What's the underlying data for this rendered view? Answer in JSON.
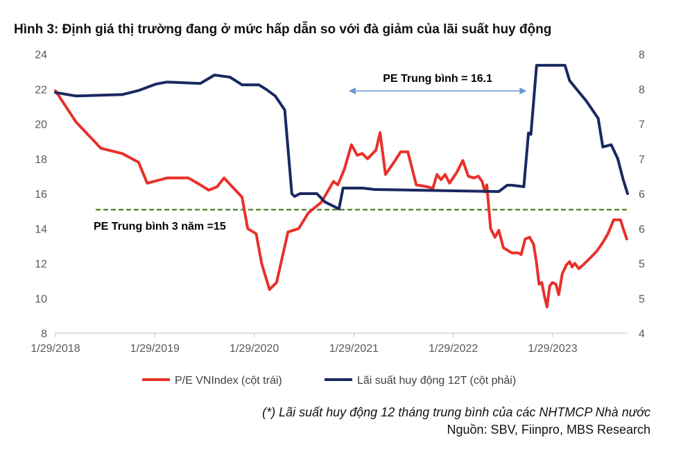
{
  "title": "Hình 3: Định giá thị trường đang ở mức hấp dẫn so với đà giảm của lãi suất huy động",
  "chart_data": {
    "type": "line",
    "x_ticks": [
      "1/29/2018",
      "1/29/2019",
      "1/29/2020",
      "1/29/2021",
      "1/29/2022",
      "1/29/2023"
    ],
    "x_range": [
      "2018-01-29",
      "2023-10-31"
    ],
    "y_left_ticks": [
      "8",
      "10",
      "12",
      "14",
      "16",
      "18",
      "20",
      "22",
      "24"
    ],
    "ylim_left": [
      8,
      24
    ],
    "y_right_ticks": [
      "4",
      "5",
      "5",
      "6",
      "6",
      "7",
      "7",
      "8",
      "8"
    ],
    "ylim_right": [
      4,
      8
    ],
    "series": [
      {
        "name": "P/E VNIndex  (cột trái)",
        "axis": "left",
        "color": "#e8312a",
        "points": [
          [
            "2018-01-29",
            21.9
          ],
          [
            "2018-04-15",
            20.1
          ],
          [
            "2018-07-15",
            18.6
          ],
          [
            "2018-10-01",
            18.3
          ],
          [
            "2018-11-30",
            17.8
          ],
          [
            "2019-01-01",
            16.6
          ],
          [
            "2019-03-15",
            16.9
          ],
          [
            "2019-06-01",
            16.9
          ],
          [
            "2019-07-15",
            16.5
          ],
          [
            "2019-08-15",
            16.2
          ],
          [
            "2019-09-15",
            16.4
          ],
          [
            "2019-10-10",
            16.9
          ],
          [
            "2019-11-15",
            16.3
          ],
          [
            "2019-12-15",
            15.8
          ],
          [
            "2020-01-05",
            14.0
          ],
          [
            "2020-02-05",
            13.7
          ],
          [
            "2020-02-25",
            12.0
          ],
          [
            "2020-03-25",
            10.5
          ],
          [
            "2020-04-20",
            10.9
          ],
          [
            "2020-06-01",
            13.8
          ],
          [
            "2020-07-10",
            14.0
          ],
          [
            "2020-08-15",
            14.9
          ],
          [
            "2020-10-01",
            15.5
          ],
          [
            "2020-11-15",
            16.7
          ],
          [
            "2020-12-01",
            16.5
          ],
          [
            "2020-12-25",
            17.4
          ],
          [
            "2021-01-20",
            18.8
          ],
          [
            "2021-02-10",
            18.2
          ],
          [
            "2021-03-01",
            18.3
          ],
          [
            "2021-03-20",
            18.0
          ],
          [
            "2021-04-20",
            18.5
          ],
          [
            "2021-05-05",
            19.5
          ],
          [
            "2021-05-25",
            17.1
          ],
          [
            "2021-06-25",
            17.8
          ],
          [
            "2021-07-20",
            18.4
          ],
          [
            "2021-08-15",
            18.4
          ],
          [
            "2021-09-15",
            16.5
          ],
          [
            "2021-10-25",
            16.4
          ],
          [
            "2021-11-15",
            16.3
          ],
          [
            "2021-11-30",
            17.1
          ],
          [
            "2021-12-15",
            16.8
          ],
          [
            "2021-12-30",
            17.1
          ],
          [
            "2022-01-15",
            16.6
          ],
          [
            "2022-02-10",
            17.2
          ],
          [
            "2022-03-05",
            17.9
          ],
          [
            "2022-03-25",
            17.0
          ],
          [
            "2022-04-15",
            16.9
          ],
          [
            "2022-05-01",
            17.0
          ],
          [
            "2022-05-15",
            16.7
          ],
          [
            "2022-05-25",
            16.1
          ],
          [
            "2022-06-01",
            16.5
          ],
          [
            "2022-06-15",
            14.0
          ],
          [
            "2022-07-01",
            13.5
          ],
          [
            "2022-07-15",
            13.9
          ],
          [
            "2022-08-01",
            12.9
          ],
          [
            "2022-09-01",
            12.6
          ],
          [
            "2022-09-25",
            12.6
          ],
          [
            "2022-10-05",
            12.5
          ],
          [
            "2022-10-20",
            13.4
          ],
          [
            "2022-11-05",
            13.5
          ],
          [
            "2022-11-20",
            13.1
          ],
          [
            "2022-12-01",
            12.0
          ],
          [
            "2022-12-10",
            10.8
          ],
          [
            "2022-12-20",
            10.9
          ],
          [
            "2022-12-30",
            10.1
          ],
          [
            "2023-01-08",
            9.5
          ],
          [
            "2023-01-18",
            10.7
          ],
          [
            "2023-01-28",
            10.9
          ],
          [
            "2023-02-10",
            10.8
          ],
          [
            "2023-02-20",
            10.2
          ],
          [
            "2023-03-05",
            11.4
          ],
          [
            "2023-03-20",
            11.9
          ],
          [
            "2023-04-01",
            12.1
          ],
          [
            "2023-04-10",
            11.8
          ],
          [
            "2023-04-20",
            12.0
          ],
          [
            "2023-05-05",
            11.7
          ],
          [
            "2023-05-20",
            11.9
          ],
          [
            "2023-06-15",
            12.3
          ],
          [
            "2023-07-10",
            12.7
          ],
          [
            "2023-08-01",
            13.2
          ],
          [
            "2023-08-20",
            13.7
          ],
          [
            "2023-09-10",
            14.5
          ],
          [
            "2023-10-05",
            14.5
          ],
          [
            "2023-10-15",
            14.0
          ],
          [
            "2023-10-28",
            13.4
          ]
        ]
      },
      {
        "name": "Lãi suất huy động 12T  (cột phải)",
        "axis": "right",
        "color": "#1a2861",
        "points": [
          [
            "2018-01-29",
            7.45
          ],
          [
            "2018-04-15",
            7.4
          ],
          [
            "2018-10-01",
            7.42
          ],
          [
            "2018-12-01",
            7.48
          ],
          [
            "2019-02-01",
            7.57
          ],
          [
            "2019-03-15",
            7.6
          ],
          [
            "2019-07-15",
            7.58
          ],
          [
            "2019-09-05",
            7.7
          ],
          [
            "2019-11-01",
            7.67
          ],
          [
            "2019-12-15",
            7.56
          ],
          [
            "2020-02-15",
            7.56
          ],
          [
            "2020-03-15",
            7.49
          ],
          [
            "2020-04-15",
            7.4
          ],
          [
            "2020-05-20",
            7.2
          ],
          [
            "2020-06-15",
            6.0
          ],
          [
            "2020-06-25",
            5.96
          ],
          [
            "2020-07-15",
            6.0
          ],
          [
            "2020-09-15",
            6.0
          ],
          [
            "2020-10-15",
            5.88
          ],
          [
            "2020-11-15",
            5.82
          ],
          [
            "2020-12-05",
            5.78
          ],
          [
            "2020-12-20",
            6.08
          ],
          [
            "2021-03-01",
            6.08
          ],
          [
            "2021-04-15",
            6.06
          ],
          [
            "2022-07-15",
            6.03
          ],
          [
            "2022-08-15",
            6.12
          ],
          [
            "2022-09-01",
            6.12
          ],
          [
            "2022-10-15",
            6.1
          ],
          [
            "2022-11-01",
            6.87
          ],
          [
            "2022-11-10",
            6.85
          ],
          [
            "2022-12-01",
            7.84
          ],
          [
            "2023-03-15",
            7.84
          ],
          [
            "2023-04-01",
            7.62
          ],
          [
            "2023-06-01",
            7.33
          ],
          [
            "2023-07-15",
            7.08
          ],
          [
            "2023-08-01",
            6.67
          ],
          [
            "2023-09-01",
            6.7
          ],
          [
            "2023-09-25",
            6.5
          ],
          [
            "2023-10-15",
            6.2
          ],
          [
            "2023-10-31",
            6.0
          ]
        ]
      }
    ],
    "reference_line": {
      "label": "PE Trung bình 3 năm =15",
      "axis": "left",
      "value": 15,
      "color": "#5a8a3a",
      "dashed": true
    },
    "annotation": {
      "label": "PE Trung bình = 16.1",
      "arrow_from": "2021-01-10",
      "arrow_to": "2022-10-25",
      "y": 23.2,
      "color": "#6a96cf"
    },
    "grid": false,
    "legend_position": "bottom"
  },
  "footnote": "(*) Lãi suất huy động 12 tháng trung bình của các NHTMCP Nhà nước",
  "source": "Nguồn: SBV, Fiinpro, MBS Research"
}
